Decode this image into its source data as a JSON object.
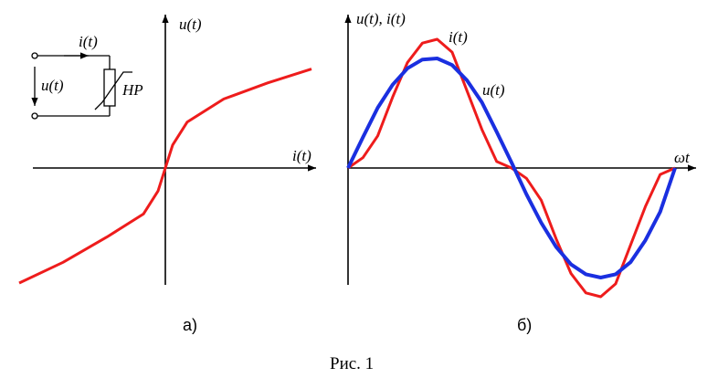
{
  "panel_a": {
    "axis_y_label": "u(t)",
    "axis_x_label": "i(t)",
    "circuit": {
      "current_label": "i(t)",
      "voltage_label": "u(t)",
      "element_label": "НР"
    },
    "caption": "а)"
  },
  "panel_b": {
    "axis_y_label": "u(t), i(t)",
    "axis_x_label": "ωt",
    "curve_i_label": "i(t)",
    "curve_u_label": "u(t)",
    "caption": "б)"
  },
  "figure_caption": "Рис. 1",
  "colors": {
    "current_curve": "#ee1c1c",
    "voltage_curve": "#1a2fe0",
    "axes": "#000000"
  },
  "chart_data": [
    {
      "type": "line",
      "series": [
        {
          "values": [
            [
              -1.0,
              -1.0
            ],
            [
              -0.7,
              -0.82
            ],
            [
              -0.4,
              -0.6
            ],
            [
              -0.15,
              -0.4
            ],
            [
              -0.05,
              -0.2
            ],
            [
              0.0,
              0.0
            ],
            [
              0.05,
              0.2
            ],
            [
              0.15,
              0.4
            ],
            [
              0.4,
              0.6
            ],
            [
              0.7,
              0.74
            ],
            [
              1.0,
              0.86
            ]
          ]
        }
      ]
    },
    {
      "type": "line",
      "series": [
        {
          "values": [
            0,
            0.08,
            0.25,
            0.55,
            0.82,
            0.97,
            1.0,
            0.9,
            0.6,
            0.3,
            0.05,
            0,
            -0.08,
            -0.25,
            -0.55,
            -0.82,
            -0.97,
            -1.0,
            -0.9,
            -0.6,
            -0.3,
            -0.05,
            0
          ]
        },
        {
          "values": [
            0,
            0.28,
            0.55,
            0.76,
            0.91,
            0.99,
            1.0,
            0.94,
            0.8,
            0.6,
            0.33,
            0.05,
            -0.24,
            -0.5,
            -0.72,
            -0.88,
            -0.97,
            -1.0,
            -0.97,
            -0.86,
            -0.66,
            -0.4,
            0
          ]
        }
      ]
    }
  ]
}
